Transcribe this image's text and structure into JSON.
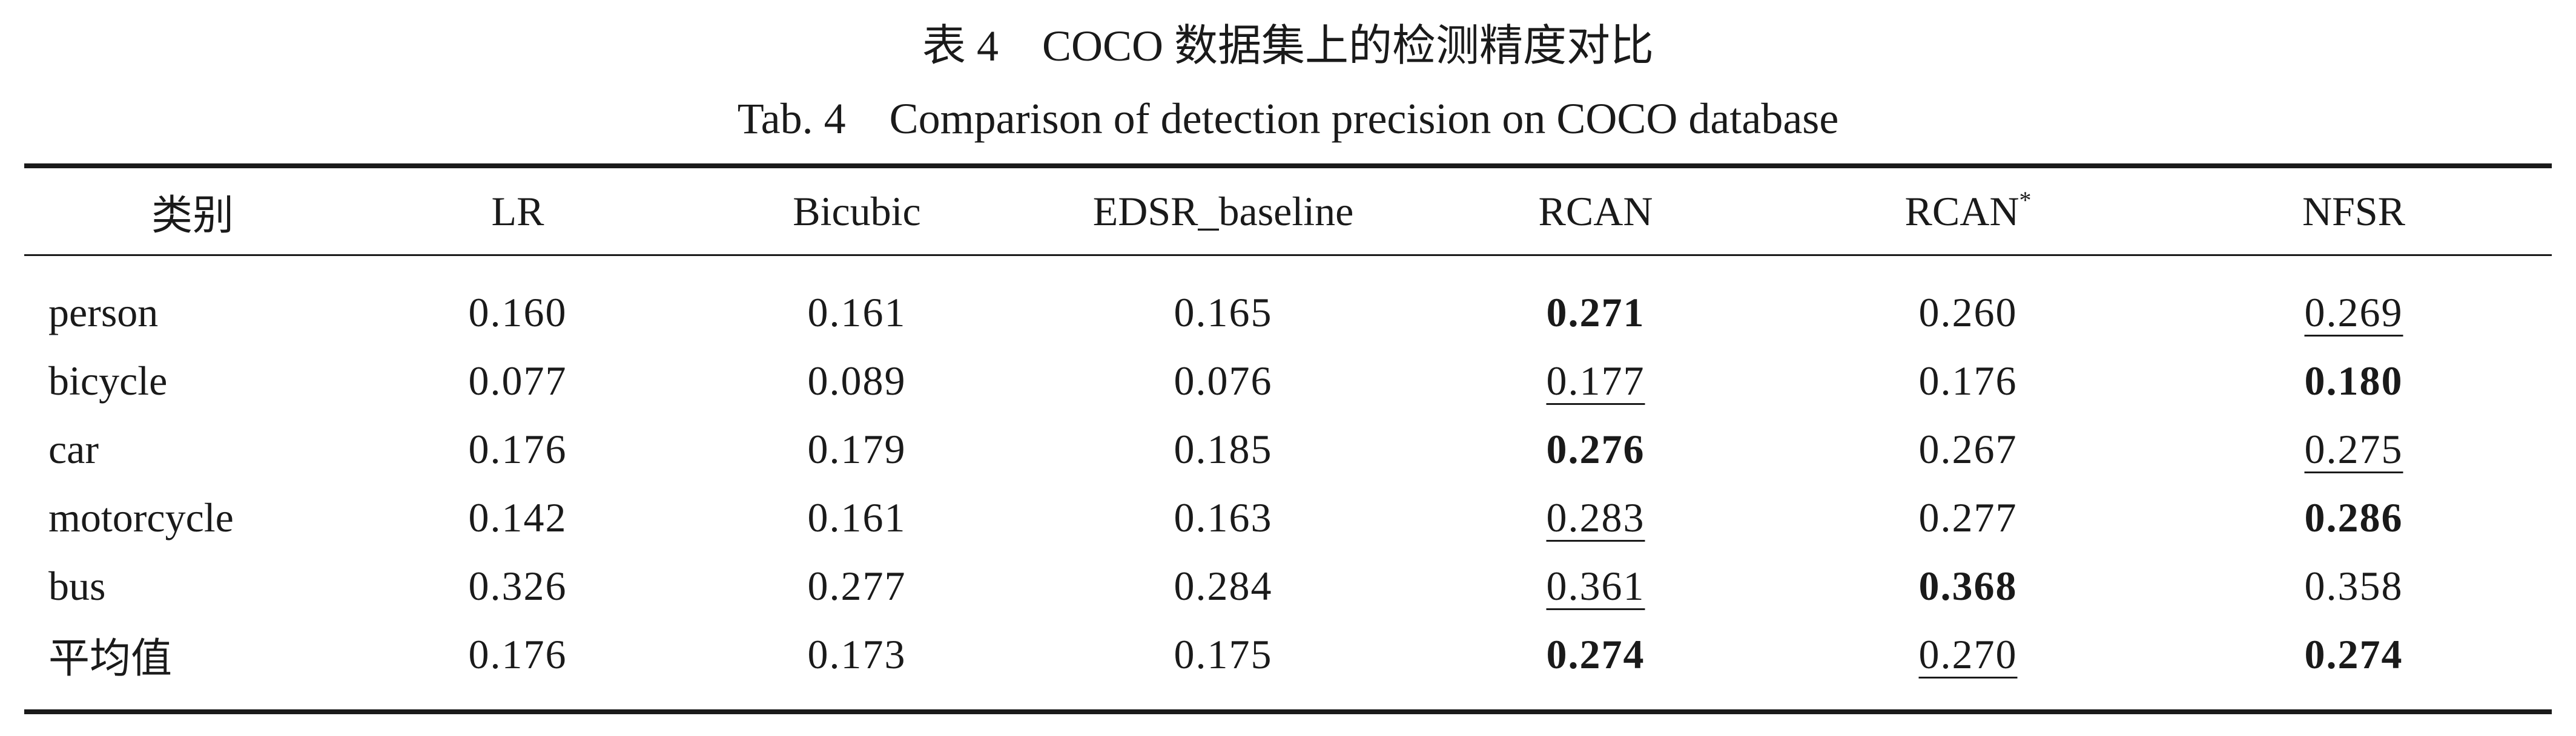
{
  "caption": {
    "cn_number": "表 4",
    "cn_title": "COCO 数据集上的检测精度对比",
    "en_number": "Tab. 4",
    "en_title": "Comparison of detection precision on COCO database"
  },
  "table": {
    "headers": [
      "类别",
      "LR",
      "Bicubic",
      "EDSR_baseline",
      "RCAN",
      "RCAN",
      "NFSR"
    ],
    "header_marks": {
      "rcan_star": "*"
    },
    "rows": [
      {
        "category": "person",
        "values": [
          "0.160",
          "0.161",
          "0.165",
          "0.271",
          "0.260",
          "0.269"
        ],
        "style": [
          "",
          "",
          "",
          "best",
          "",
          "second"
        ]
      },
      {
        "category": "bicycle",
        "values": [
          "0.077",
          "0.089",
          "0.076",
          "0.177",
          "0.176",
          "0.180"
        ],
        "style": [
          "",
          "",
          "",
          "second",
          "",
          "best"
        ]
      },
      {
        "category": "car",
        "values": [
          "0.176",
          "0.179",
          "0.185",
          "0.276",
          "0.267",
          "0.275"
        ],
        "style": [
          "",
          "",
          "",
          "best",
          "",
          "second"
        ]
      },
      {
        "category": "motorcycle",
        "values": [
          "0.142",
          "0.161",
          "0.163",
          "0.283",
          "0.277",
          "0.286"
        ],
        "style": [
          "",
          "",
          "",
          "second",
          "",
          "best"
        ]
      },
      {
        "category": "bus",
        "values": [
          "0.326",
          "0.277",
          "0.284",
          "0.361",
          "0.368",
          "0.358"
        ],
        "style": [
          "",
          "",
          "",
          "second",
          "best",
          ""
        ]
      },
      {
        "category": "平均值",
        "values": [
          "0.176",
          "0.173",
          "0.175",
          "0.274",
          "0.270",
          "0.274"
        ],
        "style": [
          "",
          "",
          "",
          "best",
          "second",
          "best"
        ]
      }
    ]
  }
}
